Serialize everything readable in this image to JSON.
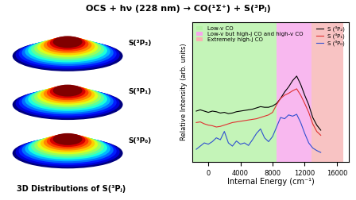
{
  "title": "OCS + hν (228 nm) → CO(¹Σ⁺) + S(³Pⱼ)",
  "images": {
    "labels": [
      "S(³P₂)",
      "S(³P₁)",
      "S(³P₀)"
    ],
    "caption": "3D Distributions of S(³Pⱼ)"
  },
  "chart_data": {
    "type": "line",
    "x_label": "Internal Energy (cm⁻¹)",
    "y_label": "Relative Intensity (arb. units)",
    "xlim": [
      -2000,
      17500
    ],
    "xticks": [
      0,
      4000,
      8000,
      12000,
      16000
    ],
    "ylim": [
      0,
      2.2
    ],
    "yticks": [],
    "tick_labels": "x",
    "legend": "upper right",
    "regions": [
      {
        "label": "Low-v CO",
        "start": -2000,
        "end": 8500,
        "color": "#b6f2a6"
      },
      {
        "label": "Low-v but high-j CO and high-v CO",
        "start": 8500,
        "end": 12800,
        "color": "#f7a6ec"
      },
      {
        "label": "Extremely high-j CO",
        "start": 12800,
        "end": 16800,
        "color": "#f7b4b4"
      }
    ],
    "x": [
      -1500,
      -1000,
      -500,
      0,
      500,
      1000,
      1500,
      2000,
      2500,
      3000,
      3500,
      4000,
      4500,
      5000,
      5500,
      6000,
      6500,
      7000,
      7500,
      8000,
      8500,
      9000,
      9500,
      10000,
      10500,
      11000,
      11500,
      12000,
      12500,
      13000,
      13500,
      14000
    ],
    "series": [
      {
        "name": "S (³P₂)",
        "color": "#000000",
        "values": [
          0.8,
          0.82,
          0.8,
          0.78,
          0.8,
          0.79,
          0.77,
          0.78,
          0.76,
          0.77,
          0.79,
          0.8,
          0.81,
          0.82,
          0.83,
          0.85,
          0.87,
          0.86,
          0.86,
          0.88,
          0.92,
          1.0,
          1.1,
          1.18,
          1.28,
          1.35,
          1.22,
          1.05,
          0.9,
          0.7,
          0.58,
          0.5
        ]
      },
      {
        "name": "S (³P₁)",
        "color": "#e03030",
        "values": [
          0.62,
          0.63,
          0.6,
          0.58,
          0.57,
          0.55,
          0.56,
          0.58,
          0.6,
          0.62,
          0.63,
          0.64,
          0.65,
          0.66,
          0.67,
          0.68,
          0.7,
          0.72,
          0.74,
          0.78,
          0.9,
          1.0,
          1.05,
          1.08,
          1.12,
          1.15,
          1.05,
          0.92,
          0.78,
          0.6,
          0.48,
          0.42
        ]
      },
      {
        "name": "S (³P₀)",
        "color": "#3050d0",
        "values": [
          0.2,
          0.25,
          0.3,
          0.28,
          0.32,
          0.38,
          0.35,
          0.48,
          0.3,
          0.25,
          0.33,
          0.28,
          0.3,
          0.26,
          0.35,
          0.45,
          0.52,
          0.38,
          0.32,
          0.4,
          0.55,
          0.7,
          0.68,
          0.74,
          0.72,
          0.75,
          0.62,
          0.45,
          0.3,
          0.22,
          0.18,
          0.15
        ]
      }
    ]
  }
}
